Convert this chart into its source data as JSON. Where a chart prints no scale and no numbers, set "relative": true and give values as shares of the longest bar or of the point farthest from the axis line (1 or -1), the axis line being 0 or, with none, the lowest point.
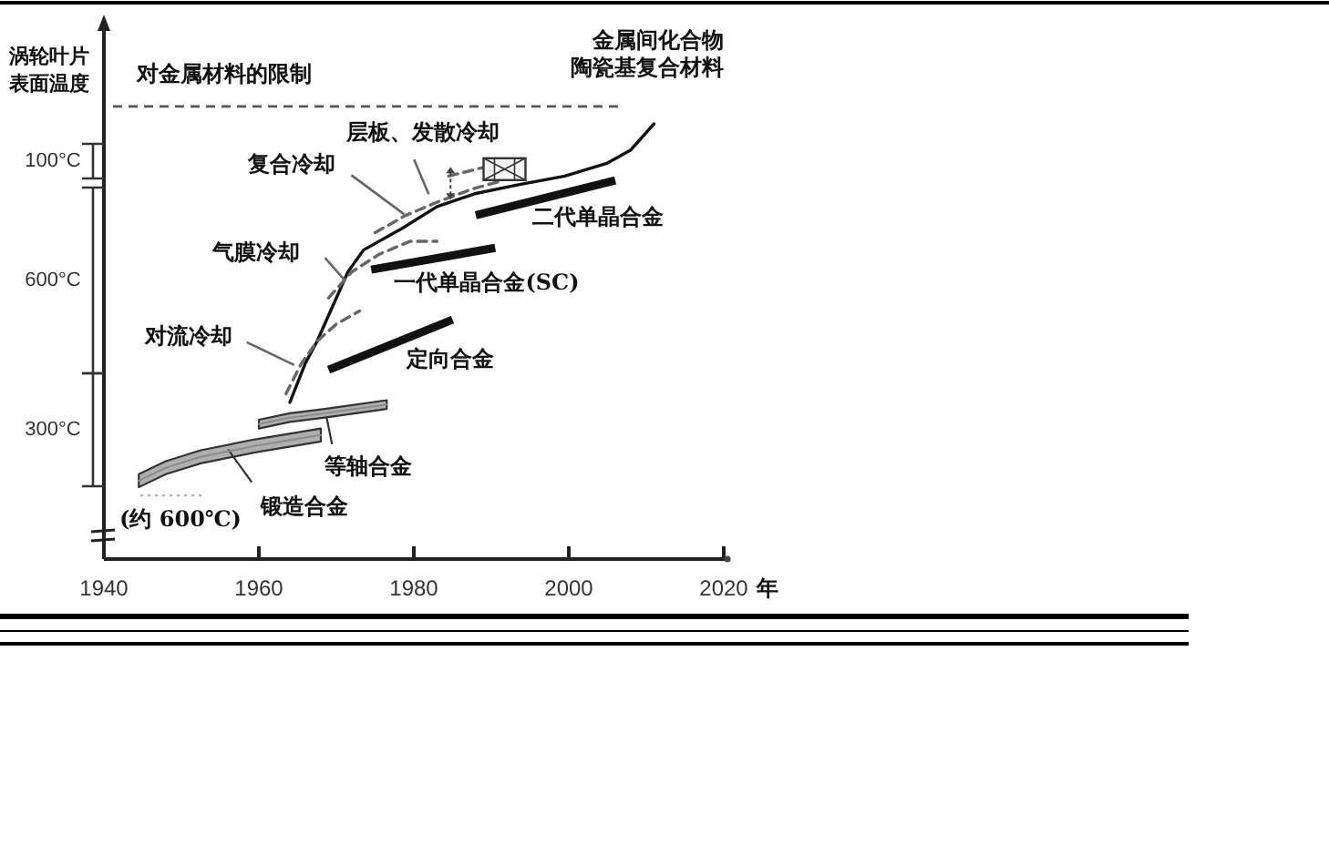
{
  "chart_data": {
    "type": "line",
    "relative": true,
    "ylabel": "涡轮叶片表面温度",
    "xlabel": "年",
    "xlim": [
      1940,
      2020
    ],
    "xticks": [
      1940,
      1960,
      1980,
      2000,
      2020
    ],
    "series": [
      {
        "color": "#111111",
        "x": [
          1964,
          1966,
          1967.5,
          1969.5,
          1971.5,
          1973.5,
          1978.5,
          1983,
          1988,
          1993.5,
          1999.5,
          2005,
          2008,
          2011
        ],
        "values": [
          0.36,
          0.45,
          0.5,
          0.58,
          0.66,
          0.71,
          0.76,
          0.81,
          0.84,
          0.86,
          0.88,
          0.91,
          0.94,
          1
        ]
      },
      {
        "name": "对流冷却",
        "color": "#666666",
        "line_style": "dashed",
        "x": [
          1963.5,
          1965.5,
          1967.5,
          1970,
          1973
        ],
        "values": [
          0.38,
          0.45,
          0.5,
          0.54,
          0.57
        ]
      },
      {
        "name": "气膜冷却",
        "color": "#666666",
        "line_style": "dashed",
        "x": [
          1969,
          1972,
          1975.5,
          1979.5,
          1983
        ],
        "values": [
          0.6,
          0.66,
          0.7,
          0.73,
          0.73
        ]
      },
      {
        "name": "复合冷却",
        "color": "#666666",
        "line_style": "dashed",
        "x": [
          1975,
          1979,
          1983,
          1987.5,
          1991.5
        ],
        "values": [
          0.75,
          0.79,
          0.82,
          0.85,
          0.87
        ]
      },
      {
        "name": "层板、发散冷却",
        "color": "#666666",
        "line_style": "dashed",
        "x": [
          1984.5,
          1989
        ],
        "values": [
          0.88,
          0.9
        ]
      },
      {
        "name": "二代单晶合金",
        "color": "#111111",
        "x": [
          1988,
          2006
        ],
        "values": [
          0.79,
          0.87
        ]
      },
      {
        "name": "一代单晶合金(SC)",
        "color": "#111111",
        "x": [
          1974.5,
          1990.5
        ],
        "values": [
          0.665,
          0.715
        ]
      },
      {
        "name": "定向合金",
        "color": "#111111",
        "x": [
          1969,
          1985
        ],
        "values": [
          0.435,
          0.55
        ]
      },
      {
        "name": "等轴合金",
        "color": "#8c8c8c",
        "x": [
          1960,
          1964,
          1968.5,
          1972.5,
          1976.5
        ],
        "values": [
          0.31,
          0.325,
          0.335,
          0.345,
          0.355
        ],
        "lower": [
          0.3,
          0.315,
          0.325,
          0.335,
          0.345
        ],
        "upper": [
          0.32,
          0.335,
          0.345,
          0.355,
          0.365
        ]
      },
      {
        "name": "锻造合金",
        "color": "#8c8c8c",
        "x": [
          1944.5,
          1948,
          1952.5,
          1959.5,
          1968
        ],
        "values": [
          0.18,
          0.21,
          0.235,
          0.26,
          0.285
        ],
        "lower": [
          0.165,
          0.195,
          0.22,
          0.245,
          0.27
        ],
        "upper": [
          0.195,
          0.225,
          0.25,
          0.275,
          0.3
        ]
      }
    ],
    "ref_lines": [
      {
        "axis": "y",
        "value": 1.04,
        "label": "对金属材料的限制",
        "color": "#555555",
        "line_style": "dashed"
      }
    ],
    "annotations": [
      "金属间化合物",
      "陶瓷基复合材料",
      "100°C",
      "600°C",
      "300°C",
      "(约 600℃)"
    ]
  }
}
